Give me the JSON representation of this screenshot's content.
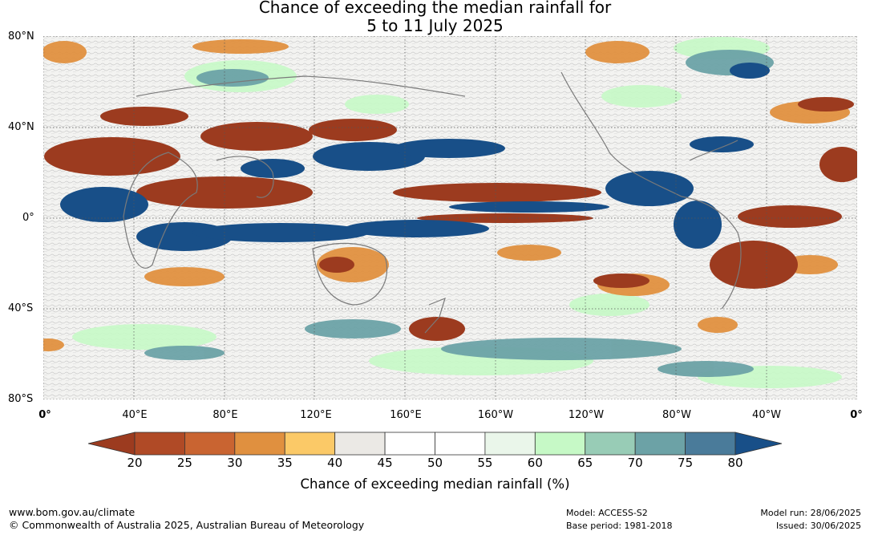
{
  "title_line1": "Chance of exceeding the median rainfall for",
  "title_line2": "5 to 11 July 2025",
  "lat_labels": [
    "80°N",
    "40°N",
    "0°",
    "40°S",
    "80°S"
  ],
  "lon_labels": [
    "0°",
    "40°E",
    "80°E",
    "120°E",
    "160°E",
    "160°W",
    "120°W",
    "80°W",
    "40°W",
    "0°"
  ],
  "legend": {
    "title": "Chance of exceeding median rainfall (%)",
    "ticks": [
      "20",
      "25",
      "30",
      "35",
      "40",
      "45",
      "50",
      "55",
      "60",
      "65",
      "70",
      "75",
      "80"
    ],
    "colors": [
      "#9c3b1f",
      "#b04a26",
      "#c96431",
      "#e0903f",
      "#fbc967",
      "#ebe9e5",
      "#ffffff",
      "#ffffff",
      "#eaf6ea",
      "#c6f9c6",
      "#98ccb6",
      "#6ca2a6",
      "#4a7b9a",
      "#184f88"
    ]
  },
  "footer": {
    "site": "www.bom.gov.au/climate",
    "copyright": "© Commonwealth of Australia 2025, Australian Bureau of Meteorology",
    "model": "Model: ACCESS-S2",
    "base_period": "Base period: 1981-2018",
    "model_run": "Model run: 28/06/2025",
    "issued": "Issued: 30/06/2025"
  }
}
